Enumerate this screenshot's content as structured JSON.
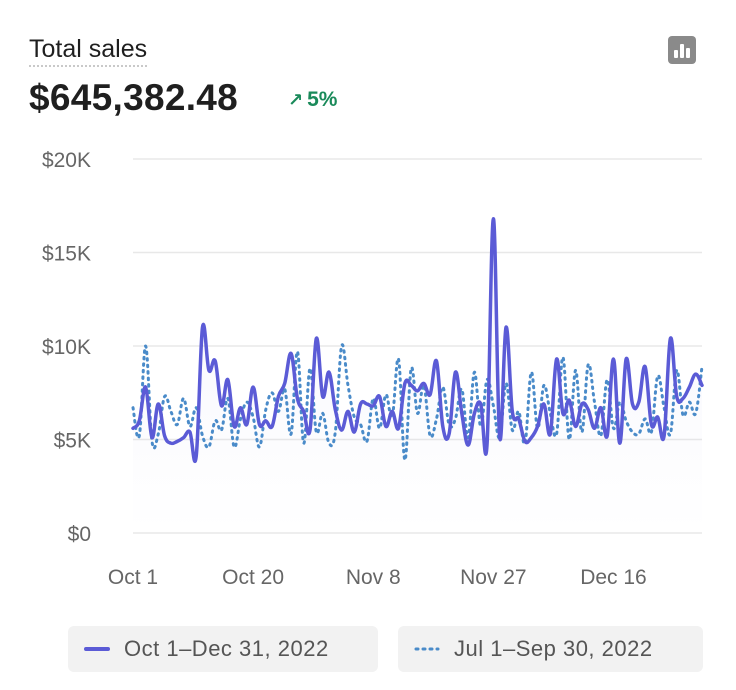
{
  "header": {
    "title": "Total sales",
    "amount": "$645,382.48",
    "change": "5%",
    "chart_icon": "bar-chart-icon",
    "colors": {
      "positive": "#1a8a5a"
    }
  },
  "legend": [
    {
      "label": "Oct 1–Dec 31, 2022",
      "style": "solid",
      "color": "#5b5bd6"
    },
    {
      "label": "Jul 1–Sep 30, 2022",
      "style": "dotted",
      "color": "#4a8bc9"
    }
  ],
  "chart_data": {
    "type": "line",
    "title": "Total sales",
    "xlabel": "",
    "ylabel": "",
    "ylim": [
      0,
      20000
    ],
    "y_ticks": [
      0,
      5000,
      10000,
      15000,
      20000
    ],
    "y_tick_labels": [
      "$0",
      "$5K",
      "$10K",
      "$15K",
      "$20K"
    ],
    "x_tick_labels": [
      {
        "label": "Oct 1",
        "day": 0
      },
      {
        "label": "Oct 20",
        "day": 19
      },
      {
        "label": "Nov 8",
        "day": 38
      },
      {
        "label": "Nov 27",
        "day": 57
      },
      {
        "label": "Dec 16",
        "day": 76
      }
    ],
    "x_range": [
      0,
      90
    ],
    "grid": true,
    "series": [
      {
        "name": "Oct 1–Dec 31, 2022",
        "style": "solid",
        "color": "#5b5bd6",
        "values": [
          5600,
          6000,
          7800,
          5100,
          6900,
          5200,
          4800,
          4900,
          5100,
          5400,
          4100,
          11000,
          8700,
          9200,
          6800,
          8200,
          5700,
          6700,
          5800,
          7800,
          5800,
          6000,
          5700,
          7300,
          8000,
          9600,
          7200,
          6500,
          5500,
          10400,
          7300,
          8600,
          6600,
          5500,
          6500,
          5400,
          6900,
          6900,
          6800,
          7300,
          5700,
          6500,
          5600,
          8000,
          7900,
          7600,
          8000,
          7400,
          9200,
          5700,
          5300,
          8600,
          6400,
          4700,
          6400,
          6900,
          4700,
          16800,
          5100,
          11000,
          6500,
          6100,
          4900,
          5100,
          5700,
          6900,
          5300,
          9300,
          6400,
          7100,
          5700,
          6900,
          6600,
          5600,
          6700,
          5200,
          9300,
          4800,
          9300,
          6900,
          7000,
          8900,
          5800,
          6200,
          5200,
          10400,
          7300,
          7200,
          7800,
          8500,
          7900
        ],
        "points": 91
      },
      {
        "name": "Jul 1–Sep 30, 2022",
        "style": "dotted",
        "color": "#4a8bc9",
        "values": [
          6700,
          5200,
          10000,
          4900,
          5300,
          7300,
          6500,
          5800,
          7200,
          5700,
          6700,
          5200,
          4600,
          6000,
          5500,
          7200,
          4600,
          6100,
          7000,
          6200,
          4600,
          6600,
          7500,
          6500,
          7700,
          5300,
          9700,
          4800,
          8800,
          5400,
          6400,
          4800,
          5400,
          10000,
          7900,
          6200,
          5800,
          4900,
          7200,
          5600,
          7400,
          6200,
          9300,
          3900,
          8800,
          6400,
          7900,
          5200,
          6100,
          7800,
          5800,
          6100,
          7700,
          5100,
          8600,
          5700,
          8200,
          6800,
          5100,
          8000,
          5500,
          6500,
          4800,
          8600,
          5600,
          7900,
          6400,
          5300,
          9400,
          5000,
          8700,
          5400,
          9000,
          7000,
          5200,
          8200,
          5600,
          7000,
          6000,
          5400,
          5300,
          6100,
          5400,
          8400,
          6700,
          5300,
          8700,
          6300,
          7000,
          6400,
          8900
        ],
        "points": 91
      }
    ]
  }
}
